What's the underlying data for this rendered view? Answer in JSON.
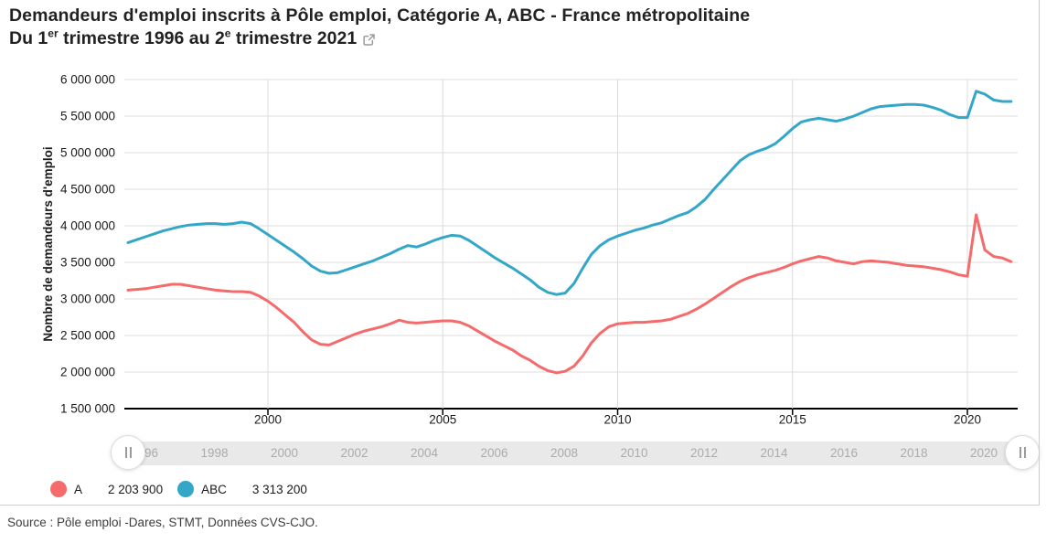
{
  "widget": {
    "title": "Demandeurs d'emploi inscrits à Pôle emploi, Catégorie A, ABC - France métropolitaine",
    "subtitle": {
      "prefix": "Du 1",
      "sup1": "er",
      "middle": " trimestre 1996 au 2",
      "sup2": "e",
      "suffix": " trimestre 2021"
    }
  },
  "chart_data": {
    "type": "line",
    "title": "Demandeurs d'emploi inscrits à Pôle emploi, Catégorie A, ABC - France métropolitaine",
    "subtitle": "Du 1er trimestre 1996 au 2e trimestre 2021",
    "xlabel": "",
    "ylabel": "Nombre de demandeurs d'emploi",
    "ylim": [
      1500000,
      6000000
    ],
    "xlim": [
      1996.0,
      2021.4
    ],
    "grid": true,
    "x_start_year": 1996,
    "x_step_years": 0.25,
    "x_axis_ticks": [
      2000,
      2005,
      2010,
      2015,
      2020
    ],
    "y_axis_ticks": [
      1500000,
      2000000,
      2500000,
      3000000,
      3500000,
      4000000,
      4500000,
      5000000,
      5500000,
      6000000
    ],
    "series": [
      {
        "name": "A",
        "color": "#F56A6A",
        "values": [
          3120000,
          3130000,
          3140000,
          3160000,
          3180000,
          3200000,
          3200000,
          3180000,
          3160000,
          3140000,
          3120000,
          3110000,
          3100000,
          3100000,
          3090000,
          3040000,
          2970000,
          2880000,
          2780000,
          2680000,
          2550000,
          2440000,
          2380000,
          2370000,
          2420000,
          2470000,
          2520000,
          2560000,
          2590000,
          2620000,
          2660000,
          2710000,
          2680000,
          2670000,
          2680000,
          2690000,
          2700000,
          2700000,
          2680000,
          2630000,
          2560000,
          2490000,
          2420000,
          2360000,
          2300000,
          2220000,
          2160000,
          2080000,
          2020000,
          1990000,
          2010000,
          2080000,
          2220000,
          2400000,
          2530000,
          2620000,
          2660000,
          2670000,
          2680000,
          2680000,
          2690000,
          2700000,
          2720000,
          2760000,
          2800000,
          2860000,
          2930000,
          3010000,
          3090000,
          3170000,
          3240000,
          3290000,
          3330000,
          3360000,
          3390000,
          3430000,
          3480000,
          3520000,
          3550000,
          3580000,
          3560000,
          3520000,
          3500000,
          3480000,
          3510000,
          3520000,
          3510000,
          3500000,
          3480000,
          3460000,
          3450000,
          3440000,
          3420000,
          3400000,
          3370000,
          3330000,
          3310000,
          4150000,
          3670000,
          3580000,
          3560000,
          3510000
        ]
      },
      {
        "name": "ABC",
        "color": "#34A7C8",
        "values": [
          3770000,
          3810000,
          3850000,
          3890000,
          3930000,
          3960000,
          3990000,
          4010000,
          4020000,
          4030000,
          4030000,
          4020000,
          4030000,
          4050000,
          4030000,
          3960000,
          3880000,
          3800000,
          3720000,
          3640000,
          3550000,
          3450000,
          3380000,
          3350000,
          3360000,
          3400000,
          3440000,
          3480000,
          3520000,
          3570000,
          3620000,
          3680000,
          3730000,
          3710000,
          3750000,
          3800000,
          3840000,
          3870000,
          3860000,
          3800000,
          3720000,
          3640000,
          3560000,
          3490000,
          3420000,
          3340000,
          3260000,
          3160000,
          3090000,
          3060000,
          3080000,
          3210000,
          3420000,
          3610000,
          3730000,
          3810000,
          3860000,
          3900000,
          3940000,
          3970000,
          4010000,
          4040000,
          4090000,
          4140000,
          4180000,
          4260000,
          4360000,
          4500000,
          4630000,
          4760000,
          4890000,
          4970000,
          5020000,
          5060000,
          5120000,
          5220000,
          5330000,
          5420000,
          5450000,
          5470000,
          5450000,
          5430000,
          5460000,
          5500000,
          5550000,
          5600000,
          5630000,
          5640000,
          5650000,
          5660000,
          5660000,
          5650000,
          5620000,
          5580000,
          5520000,
          5480000,
          5480000,
          5840000,
          5800000,
          5720000,
          5700000,
          5700000
        ]
      }
    ],
    "legend_position": "bottom"
  },
  "slider": {
    "year_labels": [
      "1996",
      "1998",
      "2000",
      "2002",
      "2004",
      "2006",
      "2008",
      "2010",
      "2012",
      "2014",
      "2016",
      "2018",
      "2020"
    ],
    "years": [
      1996,
      1998,
      2000,
      2002,
      2004,
      2006,
      2008,
      2010,
      2012,
      2014,
      2016,
      2018,
      2020
    ]
  },
  "legend": {
    "items": [
      {
        "name": "A",
        "value": "2 203 900",
        "color": "#F56A6A"
      },
      {
        "name": "ABC",
        "value": "3 313 200",
        "color": "#34A7C8"
      }
    ]
  },
  "source_note": "Source : Pôle emploi -Dares, STMT, Données CVS-CJO."
}
